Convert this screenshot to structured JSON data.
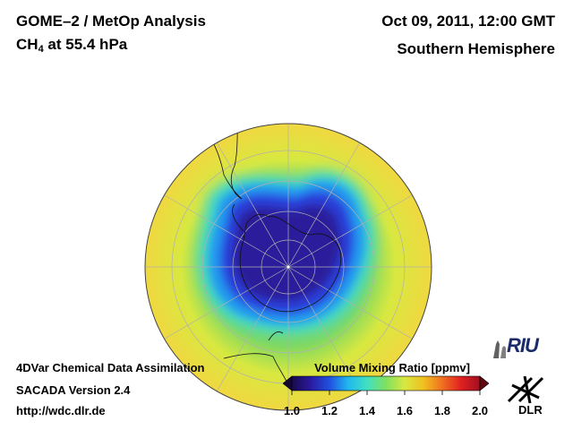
{
  "header": {
    "title_line1": "GOME–2 / MetOp Analysis",
    "species": "CH",
    "species_sub": "4",
    "level": " at 55.4 hPa",
    "date": "Oct 09, 2011, 12:00 GMT",
    "hemisphere": "Southern Hemisphere"
  },
  "footer": {
    "line1": "4DVar Chemical Data Assimilation",
    "line2": "SACADA Version 2.4",
    "line3": "http://wdc.dlr.de"
  },
  "colorbar": {
    "title": "Volume Mixing Ratio [ppmv]",
    "min": 1.0,
    "max": 2.0,
    "ticks": [
      "1.0",
      "1.2",
      "1.4",
      "1.6",
      "1.8",
      "2.0"
    ],
    "colors": [
      "#1a0a4a",
      "#2a1aa0",
      "#2050e0",
      "#20b8f0",
      "#40e0c0",
      "#80e060",
      "#d8e840",
      "#f0c020",
      "#f07020",
      "#e02020",
      "#a01020"
    ]
  },
  "logos": {
    "riu": "RIU",
    "dlr": "DLR"
  },
  "map": {
    "background_color": "#e8e040",
    "low_color": "#2a1aa0",
    "mid_color": "#2090f0"
  }
}
